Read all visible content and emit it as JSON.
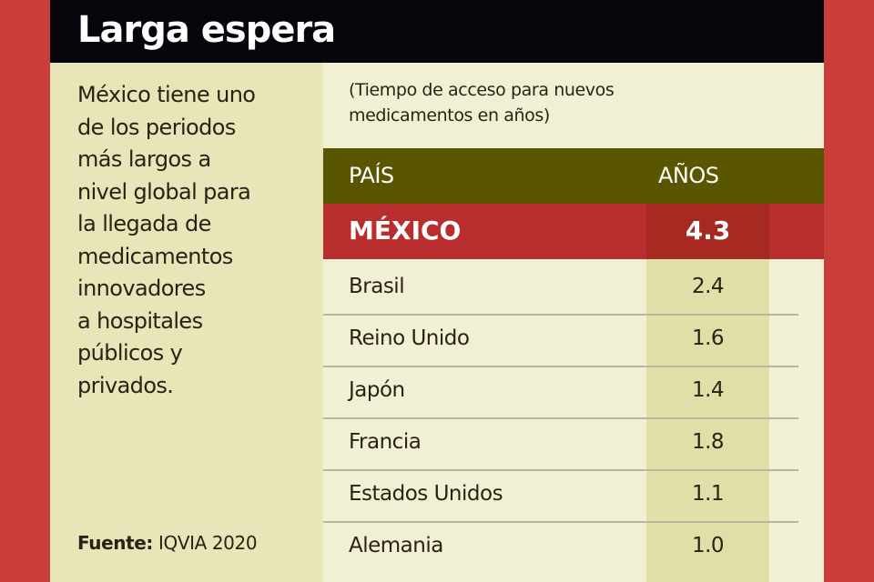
{
  "title": "Larga espera",
  "description": [
    "México tiene uno",
    "de los periodos",
    "más largos a",
    "nivel global para",
    "la llegada de",
    "medicamentos",
    "innovadores",
    "a hospitales",
    "públicos y",
    "privados."
  ],
  "source": {
    "label": "Fuente:",
    "value": "IQVIA 2020"
  },
  "subtitle": [
    "(Tiempo de acceso para nuevos",
    "medicamentos en años)"
  ],
  "colors": {
    "border": "#c93d3b",
    "header": "#5a5600",
    "highlight": "#b82e2e"
  },
  "chart_data": {
    "type": "table",
    "columns": [
      "PAÍS",
      "AÑOS"
    ],
    "rows": [
      {
        "country": "MÉXICO",
        "years": "4.3"
      },
      {
        "country": "Brasil",
        "years": "2.4"
      },
      {
        "country": "Reino Unido",
        "years": "1.6"
      },
      {
        "country": "Japón",
        "years": "1.4"
      },
      {
        "country": "Francia",
        "years": "1.8"
      },
      {
        "country": "Estados Unidos",
        "years": "1.1"
      },
      {
        "country": "Alemania",
        "years": "1.0"
      }
    ]
  }
}
